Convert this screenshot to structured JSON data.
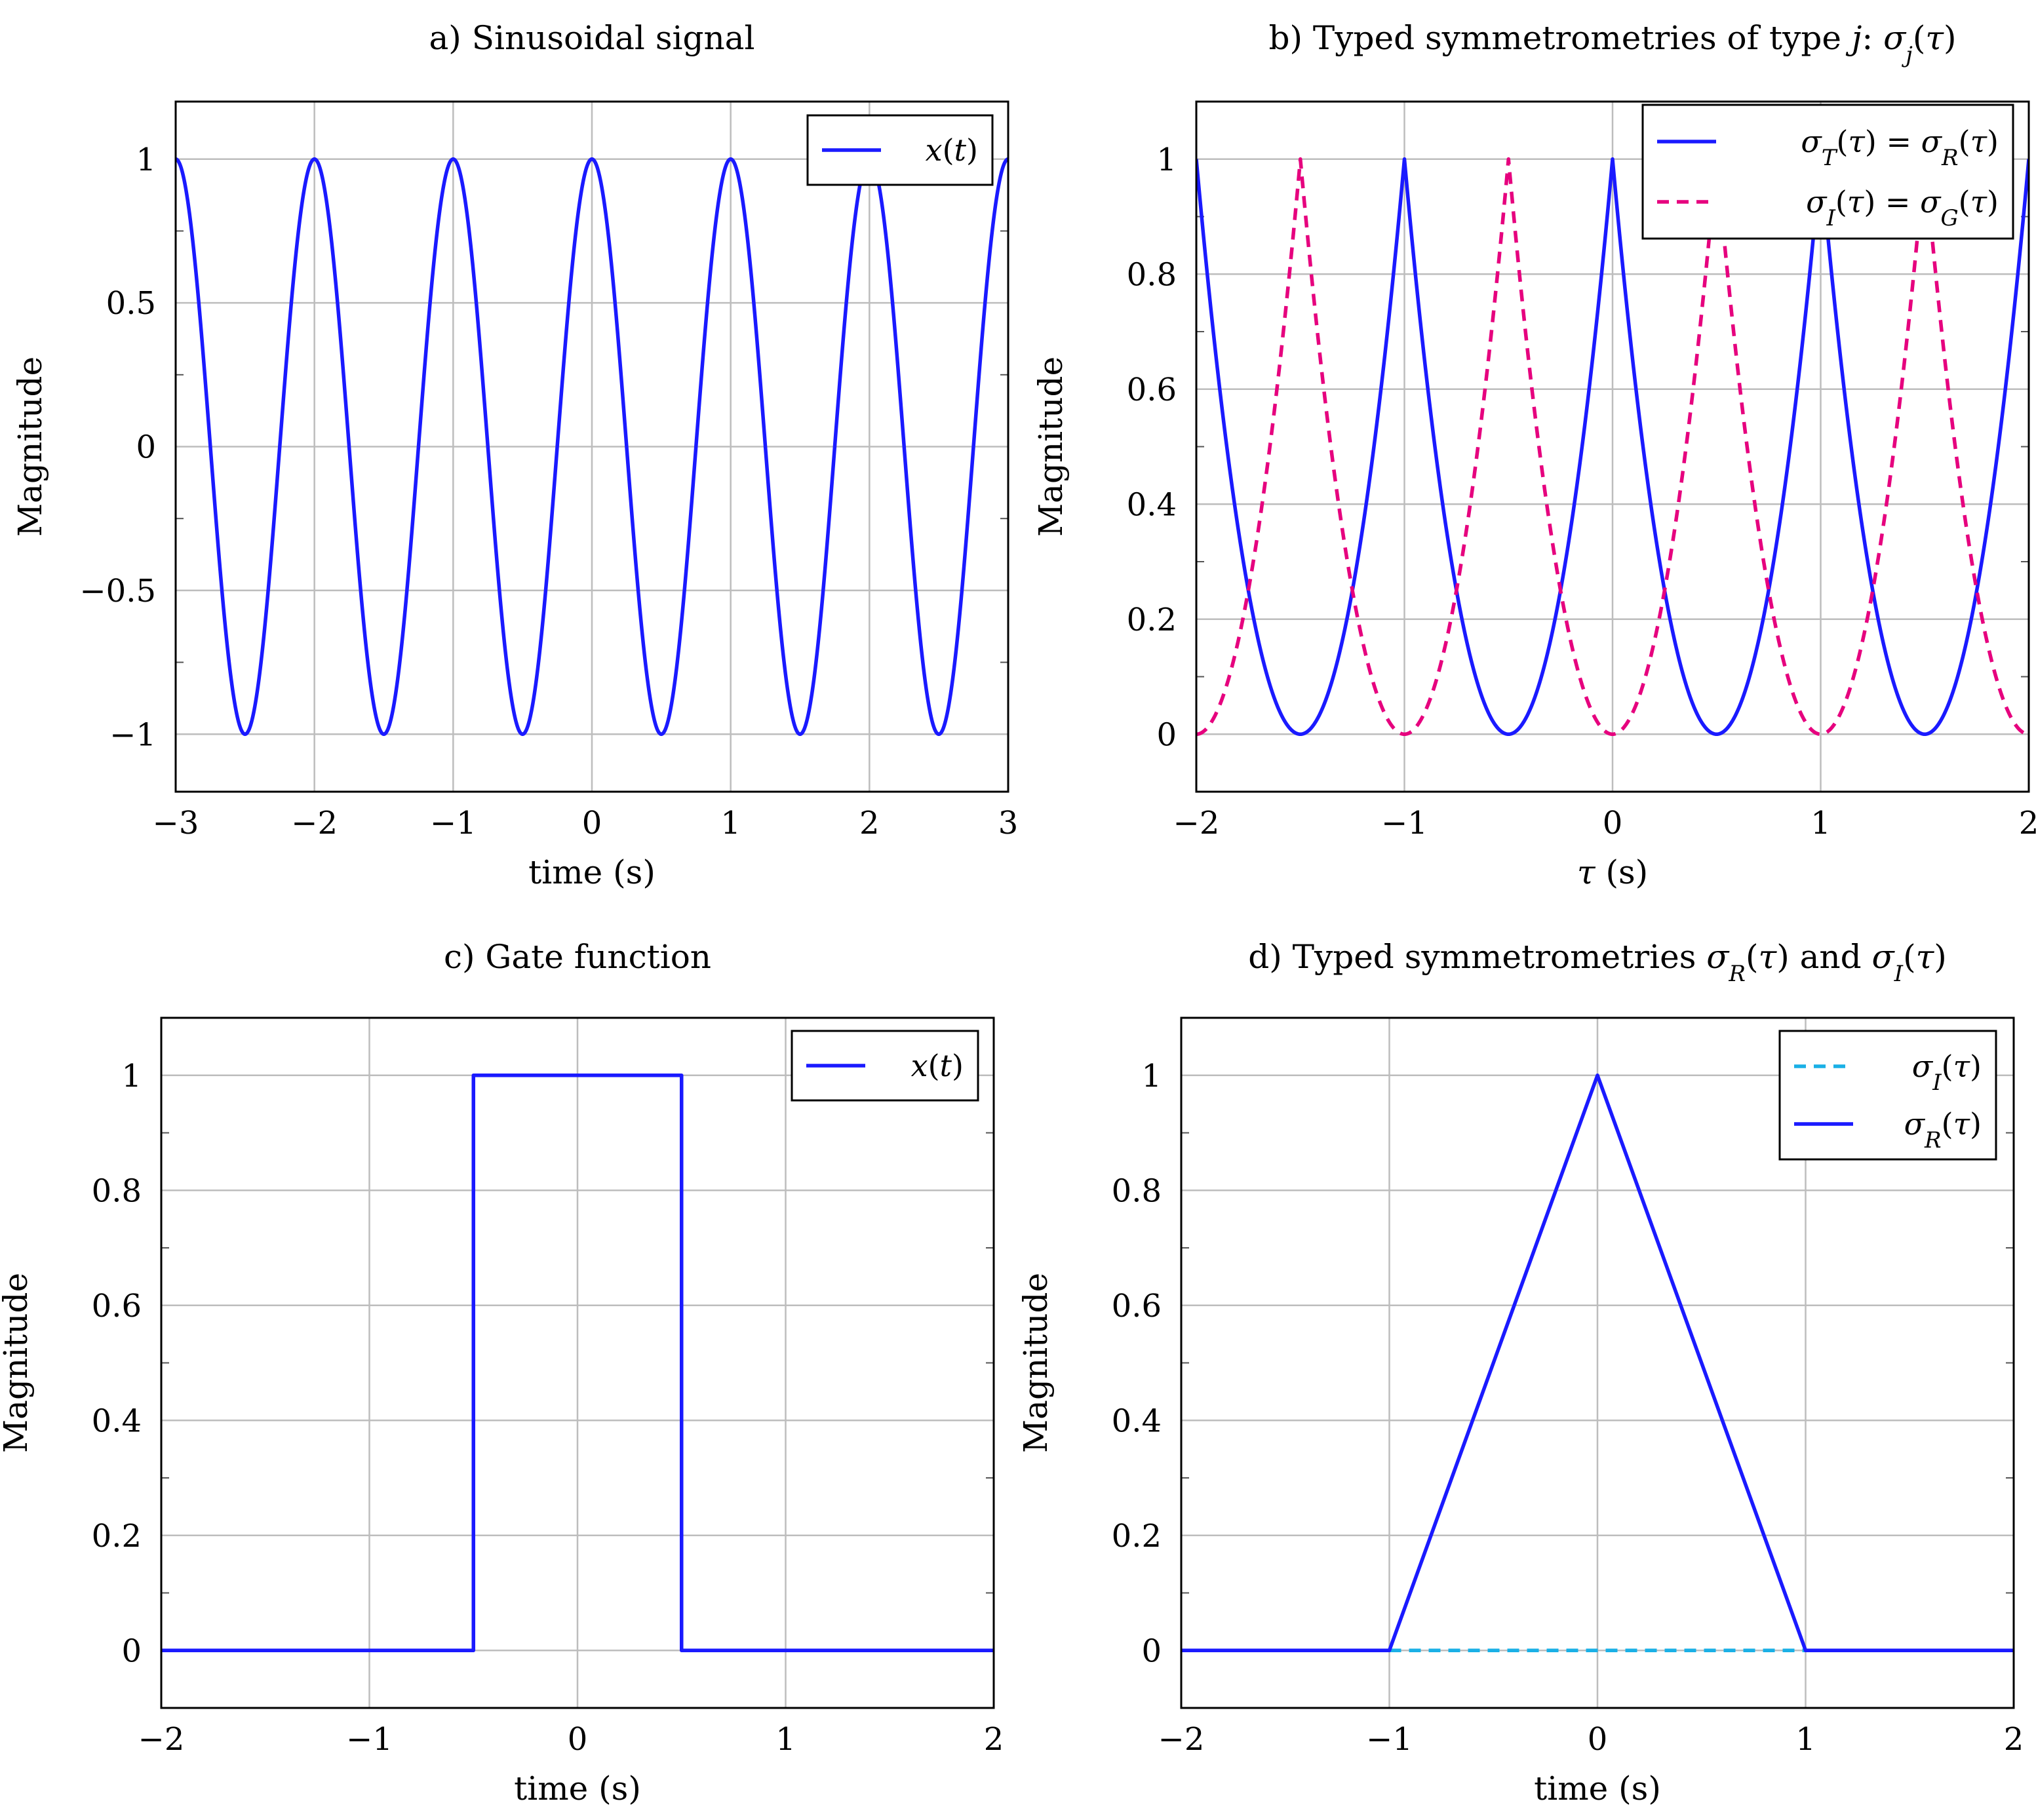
{
  "figure": {
    "panels": [
      {
        "id": "a",
        "title": "a) Sinusoidal signal",
        "xlabel": "time (s)",
        "ylabel": "Magnitude"
      },
      {
        "id": "b",
        "title": "b) Typed symmetrometries of type j: σj(τ)",
        "xlabel": "τ (s)",
        "ylabel": "Magnitude"
      },
      {
        "id": "c",
        "title": "c) Gate function",
        "xlabel": "time (s)",
        "ylabel": "Magnitude"
      },
      {
        "id": "d",
        "title": "d) Typed symmetrometries σR(τ) and σI(τ)",
        "xlabel": "time (s)",
        "ylabel": "Magnitude"
      }
    ]
  },
  "chart_data": [
    {
      "type": "line",
      "title": "a) Sinusoidal signal",
      "xlabel": "time (s)",
      "ylabel": "Magnitude",
      "xlim": [
        -3,
        3
      ],
      "ylim": [
        -1.2,
        1.2
      ],
      "xticks": [
        -3,
        -2,
        -1,
        0,
        1,
        2,
        3
      ],
      "xtick_labels": [
        "−3",
        "−2",
        "−1",
        "0",
        "1",
        "2",
        "3"
      ],
      "yticks": [
        -1,
        -0.5,
        0,
        0.5,
        1
      ],
      "ytick_labels": [
        "−1",
        "−0.5",
        "0",
        "0.5",
        "1"
      ],
      "grid": true,
      "legend_position": "top-right",
      "series": [
        {
          "name": "x(t)",
          "color": "#1a1aff",
          "style": "solid",
          "function": "cos(2πt)",
          "x": [
            -3,
            -2.75,
            -2.5,
            -2.25,
            -2,
            -1.75,
            -1.5,
            -1.25,
            -1,
            -0.75,
            -0.5,
            -0.25,
            0,
            0.25,
            0.5,
            0.75,
            1,
            1.25,
            1.5,
            1.75,
            2,
            2.25,
            2.5,
            2.75,
            3
          ],
          "y": [
            1,
            0,
            -1,
            0,
            1,
            0,
            -1,
            0,
            1,
            0,
            -1,
            0,
            1,
            0,
            -1,
            0,
            1,
            0,
            -1,
            0,
            1,
            0,
            -1,
            0,
            1
          ]
        }
      ]
    },
    {
      "type": "line",
      "title": "b) Typed symmetrometries of type j: σj(τ)",
      "xlabel": "τ (s)",
      "ylabel": "Magnitude",
      "xlim": [
        -2,
        2
      ],
      "ylim": [
        -0.1,
        1.1
      ],
      "xticks": [
        -2,
        -1,
        0,
        1,
        2
      ],
      "xtick_labels": [
        "−2",
        "−1",
        "0",
        "1",
        "2"
      ],
      "yticks": [
        0,
        0.2,
        0.4,
        0.6,
        0.8,
        1
      ],
      "ytick_labels": [
        "0",
        "0.2",
        "0.4",
        "0.6",
        "0.8",
        "1"
      ],
      "grid": true,
      "legend_position": "top-right",
      "series": [
        {
          "name": "σT(τ) = σR(τ)",
          "color": "#1a1aff",
          "style": "solid",
          "function": "(1 - 2|frac(τ)-0.5|... ) peaks at integer τ",
          "x": [
            -2,
            -1.5,
            -1,
            -0.5,
            0,
            0.5,
            1,
            1.5,
            2
          ],
          "y": [
            1,
            0,
            1,
            0,
            1,
            0,
            1,
            0,
            1
          ]
        },
        {
          "name": "σI(τ) = σG(τ)",
          "color": "#e6007e",
          "style": "dashed",
          "function": "peaks at half-integer τ",
          "x": [
            -2,
            -1.5,
            -1,
            -0.5,
            0,
            0.5,
            1,
            1.5,
            2
          ],
          "y": [
            0,
            1,
            0,
            1,
            0,
            1,
            0,
            1,
            0
          ]
        }
      ]
    },
    {
      "type": "line",
      "title": "c) Gate function",
      "xlabel": "time (s)",
      "ylabel": "Magnitude",
      "xlim": [
        -2,
        2
      ],
      "ylim": [
        -0.1,
        1.1
      ],
      "xticks": [
        -2,
        -1,
        0,
        1,
        2
      ],
      "xtick_labels": [
        "−2",
        "−1",
        "0",
        "1",
        "2"
      ],
      "yticks": [
        0,
        0.2,
        0.4,
        0.6,
        0.8,
        1
      ],
      "ytick_labels": [
        "0",
        "0.2",
        "0.4",
        "0.6",
        "0.8",
        "1"
      ],
      "grid": true,
      "legend_position": "top-right",
      "series": [
        {
          "name": "x(t)",
          "color": "#1a1aff",
          "style": "solid",
          "x": [
            -2,
            -0.5,
            -0.5,
            0.5,
            0.5,
            2
          ],
          "y": [
            0,
            0,
            1,
            1,
            0,
            0
          ]
        }
      ]
    },
    {
      "type": "line",
      "title": "d) Typed symmetrometries σR(τ) and σI(τ)",
      "xlabel": "time (s)",
      "ylabel": "Magnitude",
      "xlim": [
        -2,
        2
      ],
      "ylim": [
        -0.1,
        1.1
      ],
      "xticks": [
        -2,
        -1,
        0,
        1,
        2
      ],
      "xtick_labels": [
        "−2",
        "−1",
        "0",
        "1",
        "2"
      ],
      "yticks": [
        0,
        0.2,
        0.4,
        0.6,
        0.8,
        1
      ],
      "ytick_labels": [
        "0",
        "0.2",
        "0.4",
        "0.6",
        "0.8",
        "1"
      ],
      "grid": true,
      "legend_position": "top-right",
      "series": [
        {
          "name": "σI(τ)",
          "color": "#1ab0e6",
          "style": "dashed",
          "x": [
            -1,
            1
          ],
          "y": [
            0,
            0
          ]
        },
        {
          "name": "σR(τ)",
          "color": "#1a1aff",
          "style": "solid",
          "x": [
            -2,
            -1,
            0,
            1,
            2
          ],
          "y": [
            0,
            0,
            1,
            0,
            0
          ]
        }
      ]
    }
  ]
}
